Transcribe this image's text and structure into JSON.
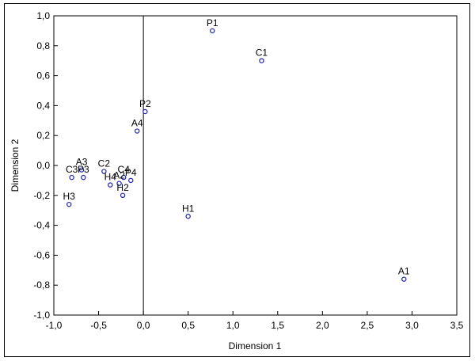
{
  "chart_data": {
    "type": "scatter",
    "title": "",
    "xlabel": "Dimension 1",
    "ylabel": "Dimension 2",
    "xlim": [
      -1.0,
      3.5
    ],
    "ylim": [
      -1.0,
      1.0
    ],
    "x_ticks": [
      "-1,0",
      "-0,5",
      "0,0",
      "0,5",
      "1,0",
      "1,5",
      "2,0",
      "2,5",
      "3,0",
      "3,5"
    ],
    "y_ticks": [
      "1,0",
      "0,8",
      "0,6",
      "0,4",
      "0,2",
      "0,0",
      "-0,2",
      "-0,4",
      "-0,6",
      "-0,8",
      "-1,0"
    ],
    "grid": false,
    "reference_lines": {
      "x": 0.0
    },
    "marker_color": "#1f1fb4",
    "points": [
      {
        "label": "P1",
        "x": 0.77,
        "y": 0.9
      },
      {
        "label": "C1",
        "x": 1.32,
        "y": 0.7
      },
      {
        "label": "P2",
        "x": 0.02,
        "y": 0.36
      },
      {
        "label": "A4",
        "x": -0.07,
        "y": 0.23
      },
      {
        "label": "A3",
        "x": -0.69,
        "y": -0.03
      },
      {
        "label": "P3",
        "x": -0.67,
        "y": -0.08
      },
      {
        "label": "C3",
        "x": -0.8,
        "y": -0.08
      },
      {
        "label": "C2",
        "x": -0.44,
        "y": -0.04
      },
      {
        "label": "C4",
        "x": -0.22,
        "y": -0.08
      },
      {
        "label": "P4",
        "x": -0.14,
        "y": -0.1
      },
      {
        "label": "A2",
        "x": -0.27,
        "y": -0.12
      },
      {
        "label": "H4",
        "x": -0.37,
        "y": -0.13
      },
      {
        "label": "H2",
        "x": -0.23,
        "y": -0.2
      },
      {
        "label": "H3",
        "x": -0.83,
        "y": -0.26
      },
      {
        "label": "H1",
        "x": 0.5,
        "y": -0.34
      },
      {
        "label": "A1",
        "x": 2.91,
        "y": -0.76
      }
    ]
  }
}
